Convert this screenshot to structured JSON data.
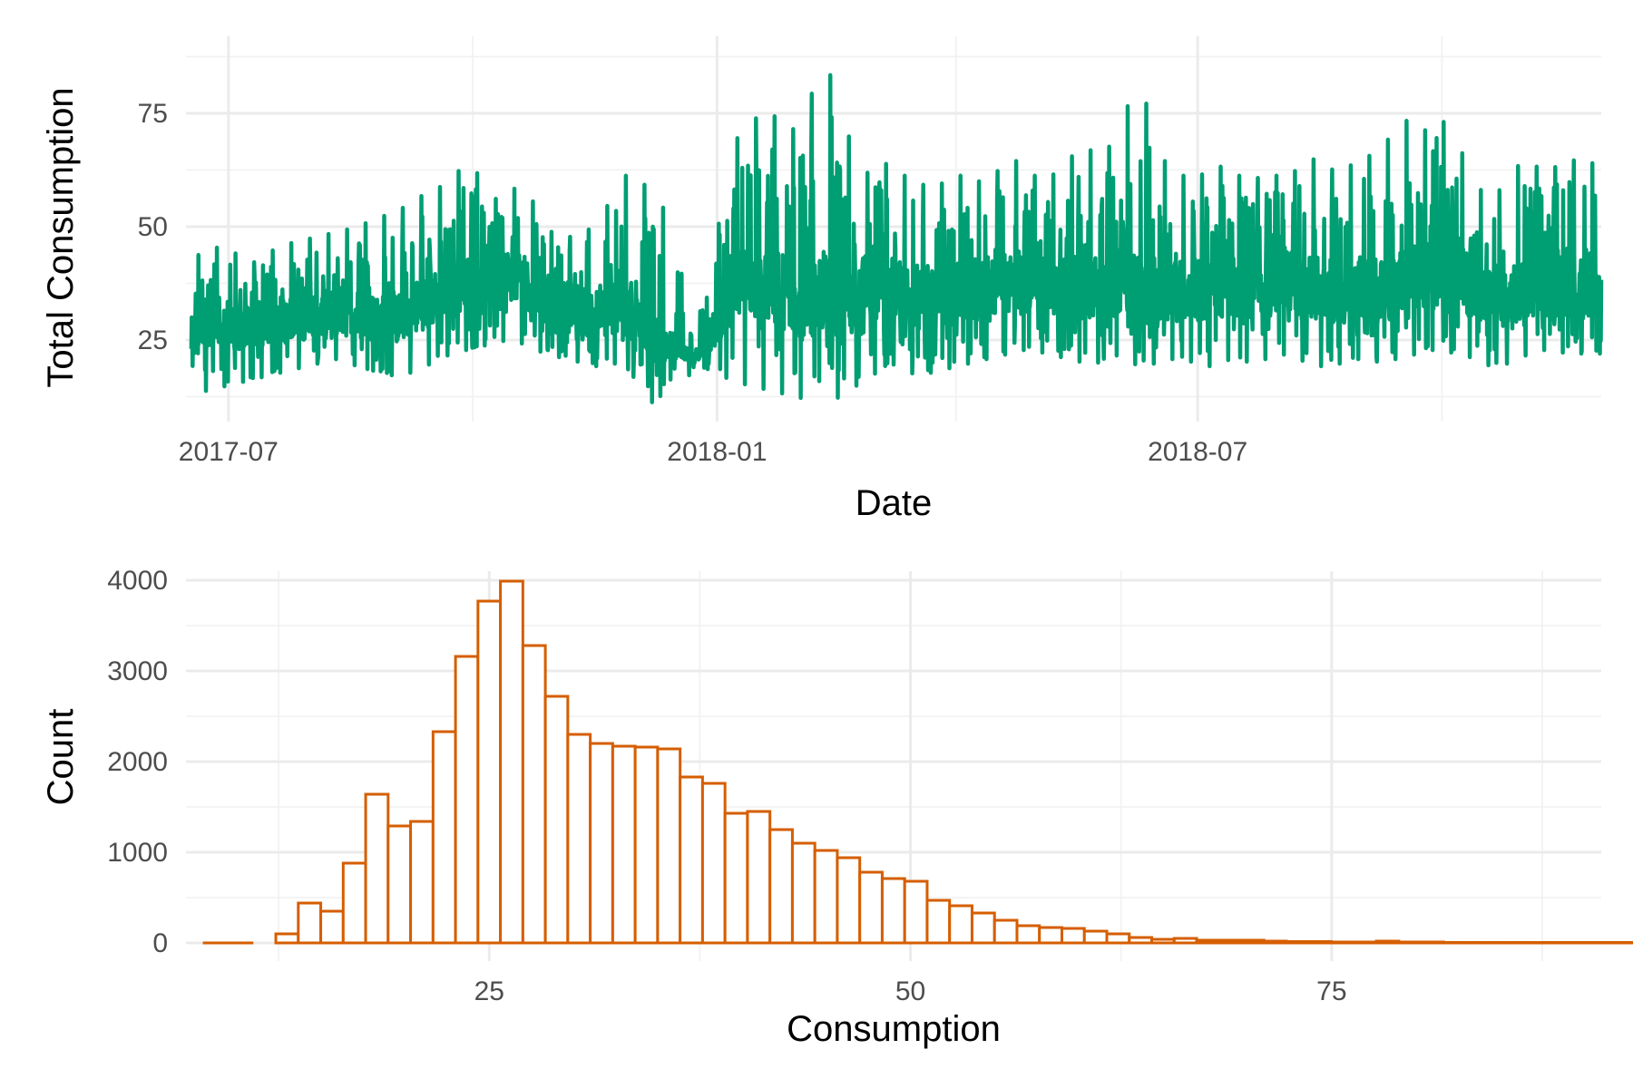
{
  "chart_data": [
    {
      "type": "line",
      "xlabel": "Date",
      "ylabel": "Total Consumption",
      "x_range": [
        "2017-06-15",
        "2018-11-30"
      ],
      "ylim": [
        7,
        92
      ],
      "x_ticks": [
        "2017-07",
        "2018-01",
        "2018-07"
      ],
      "y_ticks": [
        25,
        50,
        75
      ],
      "grid": true,
      "color": "#009E73",
      "series": [
        {
          "dates": [
            "2017-06-17",
            "2017-06-24",
            "2017-07-01",
            "2017-07-08",
            "2017-07-15",
            "2017-07-22",
            "2017-07-29",
            "2017-08-05",
            "2017-08-12",
            "2017-08-19",
            "2017-08-26",
            "2017-09-02",
            "2017-09-09",
            "2017-09-16",
            "2017-09-23",
            "2017-09-30",
            "2017-10-07",
            "2017-10-14",
            "2017-10-21",
            "2017-10-28",
            "2017-11-04",
            "2017-11-11",
            "2017-11-18",
            "2017-11-25",
            "2017-12-02",
            "2017-12-09",
            "2017-12-16",
            "2017-12-23",
            "2017-12-30",
            "2018-01-06",
            "2018-01-13",
            "2018-01-20",
            "2018-01-27",
            "2018-02-03",
            "2018-02-10",
            "2018-02-17",
            "2018-02-24",
            "2018-03-03",
            "2018-03-10",
            "2018-03-17",
            "2018-03-24",
            "2018-03-31",
            "2018-04-07",
            "2018-04-14",
            "2018-04-21",
            "2018-04-28",
            "2018-05-05",
            "2018-05-12",
            "2018-05-19",
            "2018-05-26",
            "2018-06-02",
            "2018-06-09",
            "2018-06-16",
            "2018-06-23",
            "2018-06-30",
            "2018-07-07",
            "2018-07-14",
            "2018-07-21",
            "2018-07-28",
            "2018-08-04",
            "2018-08-11",
            "2018-08-18",
            "2018-08-25",
            "2018-09-01",
            "2018-09-08",
            "2018-09-15",
            "2018-09-22",
            "2018-09-29",
            "2018-10-06",
            "2018-10-13",
            "2018-10-20",
            "2018-10-27",
            "2018-11-03",
            "2018-11-10",
            "2018-11-17",
            "2018-11-24"
          ],
          "min": [
            13,
            14,
            15,
            16,
            17,
            18,
            19,
            20,
            21,
            19,
            18,
            17,
            18,
            20,
            22,
            23,
            24,
            25,
            24,
            22,
            21,
            20,
            19,
            20,
            16,
            10,
            18,
            17,
            19,
            16,
            15,
            14,
            13,
            12,
            17,
            11,
            16,
            18,
            20,
            17,
            18,
            19,
            20,
            21,
            22,
            23,
            22,
            21,
            20,
            20,
            22,
            19,
            20,
            21,
            20,
            19,
            21,
            20,
            21,
            22,
            20,
            19,
            20,
            21,
            20,
            21,
            22,
            23,
            22,
            21,
            19,
            20,
            22,
            23,
            22,
            22
          ],
          "max": [
            43,
            45,
            46,
            41,
            44,
            46,
            47,
            48,
            49,
            50,
            52,
            53,
            56,
            58,
            60,
            66,
            55,
            58,
            59,
            50,
            47,
            49,
            50,
            62,
            60,
            58,
            48,
            26,
            40,
            68,
            72,
            77,
            70,
            74,
            88,
            76,
            60,
            65,
            62,
            60,
            58,
            62,
            60,
            60,
            66,
            62,
            60,
            64,
            68,
            65,
            72,
            84,
            66,
            62,
            60,
            64,
            62,
            60,
            62,
            60,
            66,
            63,
            62,
            66,
            65,
            76,
            69,
            75,
            70,
            60,
            55,
            63,
            64,
            62,
            65,
            64
          ],
          "typical_low": [
            20,
            21,
            22,
            23,
            24,
            24,
            25,
            25,
            26,
            25,
            24,
            24,
            26,
            28,
            30,
            31,
            33,
            34,
            32,
            29,
            27,
            26,
            25,
            27,
            24,
            20,
            21,
            20,
            22,
            30,
            30,
            28,
            27,
            26,
            27,
            24,
            26,
            28,
            29,
            28,
            27,
            28,
            29,
            30,
            31,
            32,
            31,
            30,
            29,
            29,
            31,
            28,
            29,
            30,
            29,
            28,
            30,
            29,
            30,
            31,
            30,
            29,
            28,
            30,
            29,
            30,
            31,
            32,
            31,
            30,
            26,
            27,
            30,
            31,
            30,
            30
          ],
          "typical_high": [
            30,
            31,
            32,
            33,
            34,
            34,
            35,
            36,
            37,
            36,
            35,
            35,
            38,
            40,
            42,
            44,
            46,
            45,
            43,
            40,
            38,
            37,
            36,
            38,
            35,
            30,
            26,
            22,
            30,
            44,
            45,
            46,
            44,
            43,
            45,
            42,
            44,
            44,
            43,
            42,
            41,
            42,
            43,
            44,
            45,
            46,
            45,
            44,
            43,
            43,
            46,
            44,
            43,
            44,
            43,
            42,
            44,
            43,
            44,
            45,
            44,
            43,
            42,
            44,
            43,
            44,
            46,
            48,
            46,
            44,
            40,
            41,
            44,
            46,
            45,
            45
          ]
        }
      ]
    },
    {
      "type": "bar",
      "subtype": "histogram",
      "xlabel": "Consumption",
      "ylabel": "Count",
      "xlim": [
        7,
        91
      ],
      "ylim": [
        -200,
        4100
      ],
      "x_ticks": [
        25,
        50,
        75
      ],
      "y_ticks": [
        0,
        1000,
        2000,
        3000,
        4000
      ],
      "grid": true,
      "color": "#D55E00",
      "bin_width": 1.333,
      "bin_start": 11,
      "counts": [
        0,
        100,
        440,
        350,
        880,
        1640,
        1290,
        1340,
        2330,
        3160,
        3770,
        3990,
        3280,
        2720,
        2300,
        2200,
        2170,
        2160,
        2140,
        1830,
        1760,
        1430,
        1450,
        1250,
        1100,
        1020,
        940,
        780,
        710,
        680,
        470,
        410,
        330,
        250,
        190,
        170,
        160,
        130,
        100,
        60,
        40,
        50,
        30,
        30,
        30,
        20,
        15,
        15,
        10,
        10,
        20,
        10,
        10,
        5,
        5,
        5,
        5,
        5,
        5,
        5,
        5,
        5,
        5
      ],
      "tail_min": 8,
      "tail_max": 89
    }
  ]
}
